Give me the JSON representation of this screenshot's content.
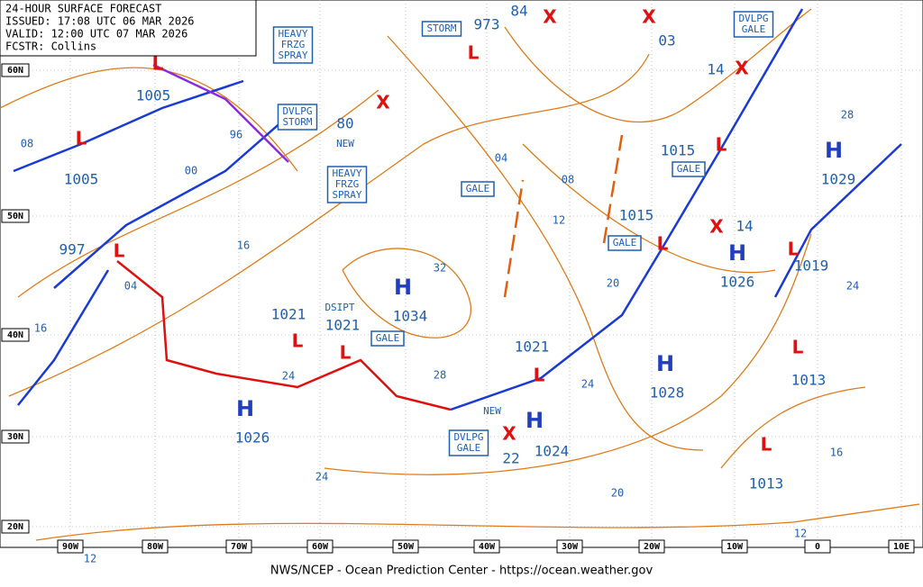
{
  "header": {
    "title": "24-HOUR SURFACE FORECAST",
    "issued": "ISSUED: 17:08 UTC 06 MAR 2026",
    "valid": "VALID: 12:00 UTC 07 MAR 2026",
    "forecaster": "FCSTR: Collins"
  },
  "lat_labels": [
    "60N",
    "50N",
    "40N",
    "30N",
    "20N"
  ],
  "lon_labels": [
    "90W",
    "80W",
    "70W",
    "60W",
    "50W",
    "40W",
    "30W",
    "20W",
    "10W",
    "0",
    "10E"
  ],
  "centers": [
    {
      "symbol": "L",
      "pressure": "1005"
    },
    {
      "symbol": "L",
      "pressure": "1005"
    },
    {
      "symbol": "L",
      "pressure": "997"
    },
    {
      "symbol": "L",
      "pressure": "1021"
    },
    {
      "symbol": "L",
      "pressure": "1021"
    },
    {
      "symbol": "H",
      "pressure": "1034"
    },
    {
      "symbol": "H",
      "pressure": "1026"
    },
    {
      "symbol": "L",
      "pressure": "973"
    },
    {
      "symbol": "L",
      "pressure": "1021"
    },
    {
      "symbol": "H",
      "pressure": "1024"
    },
    {
      "symbol": "X",
      "pressure": "22"
    },
    {
      "symbol": "H",
      "pressure": "1028"
    },
    {
      "symbol": "L",
      "pressure": "1015"
    },
    {
      "symbol": "L",
      "pressure": "1015"
    },
    {
      "symbol": "H",
      "pressure": "1026"
    },
    {
      "symbol": "X",
      "pressure": "14"
    },
    {
      "symbol": "X",
      "pressure": "14"
    },
    {
      "symbol": "X",
      "pressure": "03"
    },
    {
      "symbol": "X",
      "pressure": "84"
    },
    {
      "symbol": "X",
      "pressure": "80"
    },
    {
      "symbol": "H",
      "pressure": "1029"
    },
    {
      "symbol": "L",
      "pressure": "1019"
    },
    {
      "symbol": "L",
      "pressure": "1013"
    },
    {
      "symbol": "L",
      "pressure": "1013"
    }
  ],
  "isobar_labels": [
    "08",
    "96",
    "00",
    "04",
    "16",
    "16",
    "24",
    "28",
    "32",
    "04",
    "08",
    "12",
    "20",
    "24",
    "20",
    "24",
    "12",
    "12",
    "16",
    "24",
    "28"
  ],
  "boxed_labels": [
    [
      "HEAVY",
      "FRZG",
      "SPRAY"
    ],
    [
      "DVLPG",
      "STORM"
    ],
    [
      "HEAVY",
      "FRZG",
      "SPRAY"
    ],
    [
      "STORM"
    ],
    [
      "DVLPG",
      "GALE"
    ],
    [
      "GALE"
    ],
    [
      "GALE"
    ],
    [
      "GALE"
    ],
    [
      "GALE"
    ],
    [
      "DVLPG",
      "GALE"
    ]
  ],
  "plain_labels": [
    "NEW",
    "DSIPT",
    "NEW"
  ],
  "footer": "NWS/NCEP - Ocean Prediction Center - https://ocean.weather.gov"
}
